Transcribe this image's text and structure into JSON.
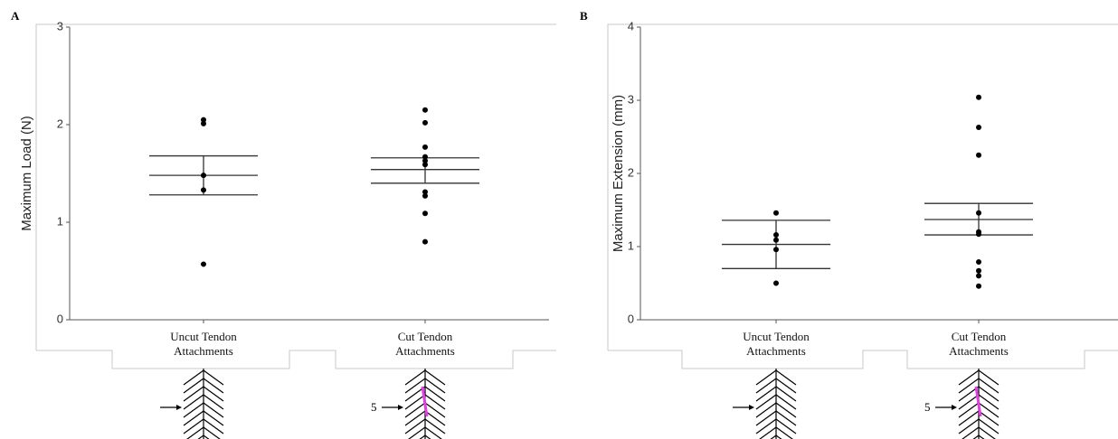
{
  "chart_data": [
    {
      "type": "dot",
      "panel_label": "A",
      "y_label": "Maximum Load (N)",
      "categories": [
        "Uncut Tendon Attachments",
        "Cut Tendon Attachments"
      ],
      "groups": [
        {
          "values": [
            2.05,
            2.01,
            1.48,
            1.33,
            0.57
          ],
          "mean": 1.48,
          "upper": 1.68,
          "lower": 1.28
        },
        {
          "values": [
            2.15,
            2.02,
            1.77,
            1.67,
            1.63,
            1.59,
            1.31,
            1.27,
            1.09,
            0.8
          ],
          "mean": 1.54,
          "upper": 1.66,
          "lower": 1.4
        }
      ],
      "diagram_note": "5",
      "color": "#000000",
      "ylim": [
        0,
        3
      ],
      "yticks": [
        0,
        1,
        2,
        3
      ]
    },
    {
      "type": "dot",
      "panel_label": "B",
      "y_label": "Maximum Extension (mm)",
      "categories": [
        "Uncut Tendon Attachments",
        "Cut Tendon Attachments"
      ],
      "groups": [
        {
          "values": [
            1.46,
            1.16,
            1.09,
            0.96,
            0.5
          ],
          "mean": 1.03,
          "upper": 1.36,
          "lower": 0.7
        },
        {
          "values": [
            3.04,
            2.63,
            2.25,
            1.46,
            1.2,
            1.17,
            0.79,
            0.67,
            0.6,
            0.46
          ],
          "mean": 1.37,
          "upper": 1.59,
          "lower": 1.16
        }
      ],
      "diagram_note": "5",
      "color": "#000000",
      "ylim": [
        0,
        4
      ],
      "yticks": [
        0,
        1,
        2,
        3,
        4
      ]
    }
  ]
}
